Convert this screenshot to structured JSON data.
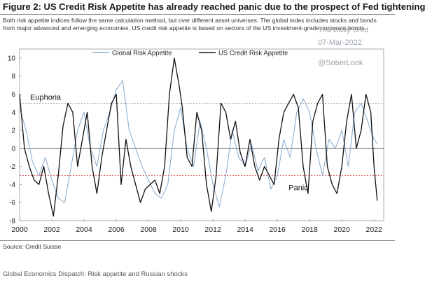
{
  "title": "Figure 2: US Credit Risk Appetite has already reached panic due to the prospect of Fed tightening",
  "subtitle": "Both risk appetite indices follow the same calculation method, but over different asset universes. The global index includes stocks and bonds from major advanced and emerging economies. US credit risk appetite is based on sectors of the US investment-grade corporate bonds.",
  "watermark": {
    "site": "The Daily Shot",
    "date": "07-Mar-2022",
    "handle": "@SoberLook"
  },
  "source": "Source: Credit Suisse",
  "footer": "Global Economics Dispatch: Risk appetite and Russian shocks",
  "colors": {
    "global": "#8fb0d2",
    "us": "#111111",
    "threshold": "#e03a3a"
  },
  "chart_data": {
    "type": "line",
    "xlim": [
      2000,
      2022.6
    ],
    "ylim": [
      -8,
      11
    ],
    "x_ticks": [
      2000,
      2002,
      2004,
      2006,
      2008,
      2010,
      2012,
      2014,
      2016,
      2018,
      2020,
      2022
    ],
    "x_tick_labels": [
      "2000",
      "2002",
      "2004",
      "2006",
      "2008",
      "2010",
      "2012",
      "2014",
      "2016",
      "2018",
      "2020",
      "2022"
    ],
    "y_ticks": [
      -8,
      -6,
      -4,
      -2,
      0,
      2,
      4,
      6,
      8,
      10
    ],
    "y_tick_labels": [
      "-8",
      "-6",
      "-4",
      "-2",
      "0",
      "2",
      "4",
      "6",
      "8",
      "10"
    ],
    "thresholds": [
      {
        "label": "Euphoria",
        "y": 5,
        "color": "#8c8c8c"
      },
      {
        "label": "Panic",
        "y": -3,
        "color": "#e03a3a"
      }
    ],
    "zero_line": 0,
    "legend": {
      "placement": "top-center"
    },
    "series": [
      {
        "name": "Global Risk Appetite",
        "color": "#8fb0d2",
        "x": [
          2000.0,
          2000.4,
          2000.8,
          2001.2,
          2001.6,
          2002.0,
          2002.4,
          2002.8,
          2003.2,
          2003.6,
          2004.0,
          2004.4,
          2004.8,
          2005.2,
          2005.6,
          2006.0,
          2006.4,
          2006.8,
          2007.2,
          2007.6,
          2008.0,
          2008.4,
          2008.8,
          2009.2,
          2009.6,
          2010.0,
          2010.4,
          2010.8,
          2011.2,
          2011.6,
          2012.0,
          2012.4,
          2012.8,
          2013.2,
          2013.6,
          2014.0,
          2014.4,
          2014.8,
          2015.2,
          2015.6,
          2016.0,
          2016.4,
          2016.8,
          2017.2,
          2017.6,
          2018.0,
          2018.4,
          2018.8,
          2019.2,
          2019.6,
          2020.0,
          2020.4,
          2020.8,
          2021.2,
          2021.6,
          2022.0,
          2022.2
        ],
        "y": [
          4.5,
          2.0,
          -1.5,
          -3.0,
          -1.0,
          -3.5,
          -5.5,
          -6.0,
          -2.0,
          2.0,
          4.0,
          0.0,
          -2.0,
          2.0,
          4.0,
          6.5,
          7.5,
          2.0,
          0.0,
          -2.0,
          -3.5,
          -5.0,
          -5.5,
          -4.0,
          2.0,
          4.5,
          0.0,
          -2.0,
          3.0,
          0.0,
          -4.0,
          -6.5,
          -3.0,
          2.0,
          -1.0,
          -2.0,
          0.5,
          -2.5,
          -1.0,
          -4.5,
          -3.0,
          1.0,
          -1.0,
          4.0,
          5.5,
          4.0,
          0.0,
          -3.0,
          1.0,
          0.0,
          2.0,
          -2.0,
          4.0,
          5.0,
          3.0,
          1.0,
          0.5
        ]
      },
      {
        "name": "US Credit Risk Appetite",
        "color": "#111111",
        "x": [
          2000.0,
          2000.3,
          2000.6,
          2000.9,
          2001.2,
          2001.5,
          2001.8,
          2002.1,
          2002.4,
          2002.7,
          2003.0,
          2003.3,
          2003.6,
          2003.9,
          2004.2,
          2004.5,
          2004.8,
          2005.1,
          2005.4,
          2005.7,
          2006.0,
          2006.3,
          2006.6,
          2006.9,
          2007.2,
          2007.5,
          2007.8,
          2008.1,
          2008.4,
          2008.7,
          2009.0,
          2009.3,
          2009.6,
          2009.9,
          2010.1,
          2010.4,
          2010.7,
          2011.0,
          2011.3,
          2011.6,
          2011.9,
          2012.2,
          2012.5,
          2012.8,
          2013.1,
          2013.4,
          2013.7,
          2014.0,
          2014.3,
          2014.6,
          2014.9,
          2015.2,
          2015.5,
          2015.8,
          2016.1,
          2016.4,
          2016.7,
          2017.0,
          2017.3,
          2017.6,
          2017.9,
          2018.2,
          2018.5,
          2018.8,
          2019.1,
          2019.4,
          2019.7,
          2020.0,
          2020.3,
          2020.6,
          2020.9,
          2021.2,
          2021.5,
          2021.8,
          2022.0,
          2022.2
        ],
        "y": [
          6.0,
          0.0,
          -2.0,
          -3.5,
          -4.0,
          -2.0,
          -5.0,
          -7.5,
          -3.0,
          2.5,
          5.0,
          4.0,
          -2.0,
          1.0,
          4.0,
          -2.0,
          -5.0,
          -1.0,
          2.0,
          5.0,
          6.0,
          -4.0,
          1.0,
          -2.0,
          -4.0,
          -6.0,
          -4.5,
          -4.0,
          -3.5,
          -5.0,
          -2.0,
          6.0,
          10.0,
          7.0,
          4.5,
          -1.0,
          -2.0,
          4.0,
          2.0,
          -4.0,
          -7.0,
          -3.0,
          5.0,
          4.0,
          1.0,
          3.0,
          -0.5,
          -2.0,
          1.0,
          -2.0,
          -3.5,
          -2.0,
          -3.0,
          -4.0,
          1.0,
          4.0,
          5.0,
          6.0,
          4.5,
          -2.0,
          -5.0,
          3.0,
          5.0,
          6.0,
          -2.0,
          -4.0,
          -5.0,
          -2.0,
          3.0,
          6.0,
          0.0,
          2.0,
          6.0,
          4.0,
          -2.0,
          -5.8
        ]
      }
    ]
  }
}
